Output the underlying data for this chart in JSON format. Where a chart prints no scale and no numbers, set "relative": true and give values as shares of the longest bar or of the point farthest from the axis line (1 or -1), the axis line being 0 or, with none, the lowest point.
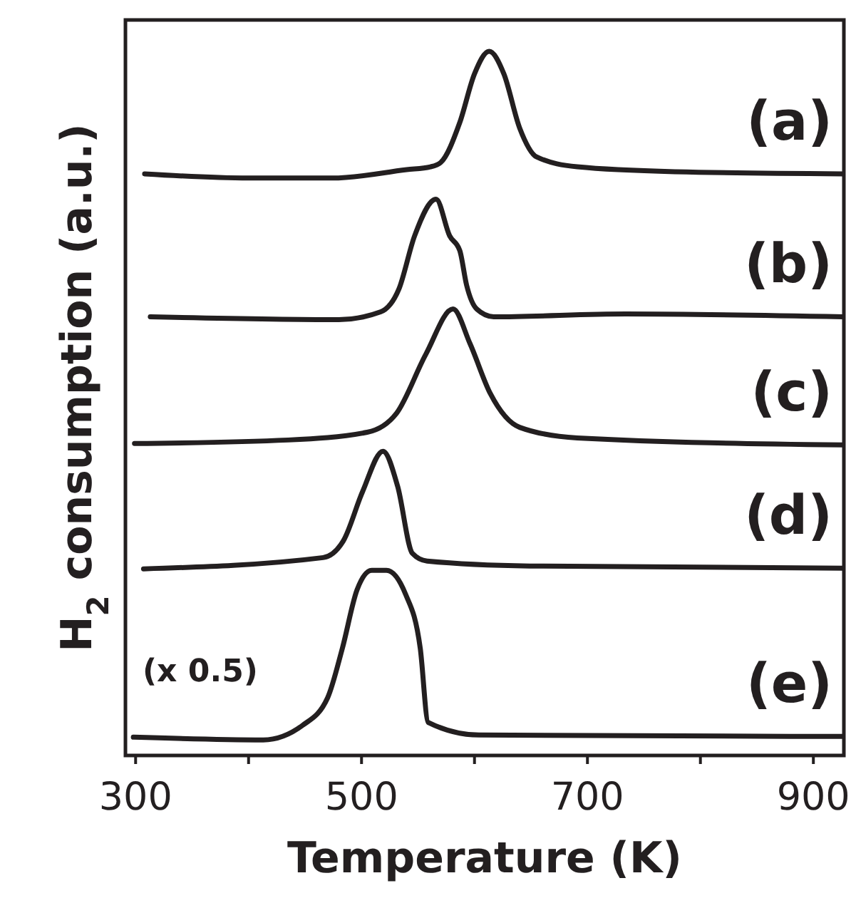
{
  "chart_data": {
    "type": "line",
    "xlabel": "Temperature (K)",
    "ylabel": "H$_{2}$ consumption (a.u.)",
    "relative": true,
    "xlim": [
      291,
      927
    ],
    "xticks": [
      300,
      {
        "value": 400,
        "label": null
      },
      500,
      {
        "value": 600,
        "label": null
      },
      700,
      {
        "value": 800,
        "label": null
      },
      900
    ],
    "grid": false,
    "marker": "none",
    "line_style": "solid",
    "annotations": [
      "(x 0.5)"
    ],
    "series": [
      {
        "name": "(a)",
        "color": "#231f20",
        "x": [
          308,
          400,
          474,
          540,
          561,
          570,
          587,
          600,
          613,
          626,
          640,
          655,
          691,
          778,
          926
        ],
        "values": [
          0.826,
          0.82,
          0.82,
          0.832,
          0.836,
          0.842,
          0.899,
          0.968,
          1.0,
          0.968,
          0.891,
          0.85,
          0.836,
          0.829,
          0.826
        ]
      },
      {
        "name": "(b)",
        "color": "#231f20",
        "x": [
          313,
          480,
          517,
          533,
          547,
          566,
          578,
          587,
          593,
          602,
          617,
          734,
          926
        ],
        "values": [
          0.623,
          0.619,
          0.63,
          0.662,
          0.738,
          0.79,
          0.738,
          0.717,
          0.668,
          0.634,
          0.623,
          0.627,
          0.623
        ]
      },
      {
        "name": "(c)",
        "color": "#231f20",
        "x": [
          299,
          435,
          505,
          531,
          557,
          581,
          596,
          614,
          640,
          691,
          926
        ],
        "values": [
          0.443,
          0.448,
          0.459,
          0.486,
          0.57,
          0.634,
          0.585,
          0.514,
          0.466,
          0.451,
          0.441
        ]
      },
      {
        "name": "(d)",
        "color": "#231f20",
        "x": [
          307,
          466,
          484,
          501,
          519,
          532,
          545,
          558,
          649,
          926
        ],
        "values": [
          0.265,
          0.281,
          0.305,
          0.375,
          0.432,
          0.382,
          0.287,
          0.276,
          0.269,
          0.266
        ]
      },
      {
        "name": "(e)",
        "color": "#231f20",
        "x": [
          298,
          413,
          448,
          470,
          483,
          496,
          509,
          522,
          539,
          552,
          559,
          604,
          926
        ],
        "values": [
          0.026,
          0.022,
          0.043,
          0.082,
          0.152,
          0.235,
          0.263,
          0.263,
          0.229,
          0.152,
          0.047,
          0.029,
          0.027
        ]
      }
    ]
  }
}
